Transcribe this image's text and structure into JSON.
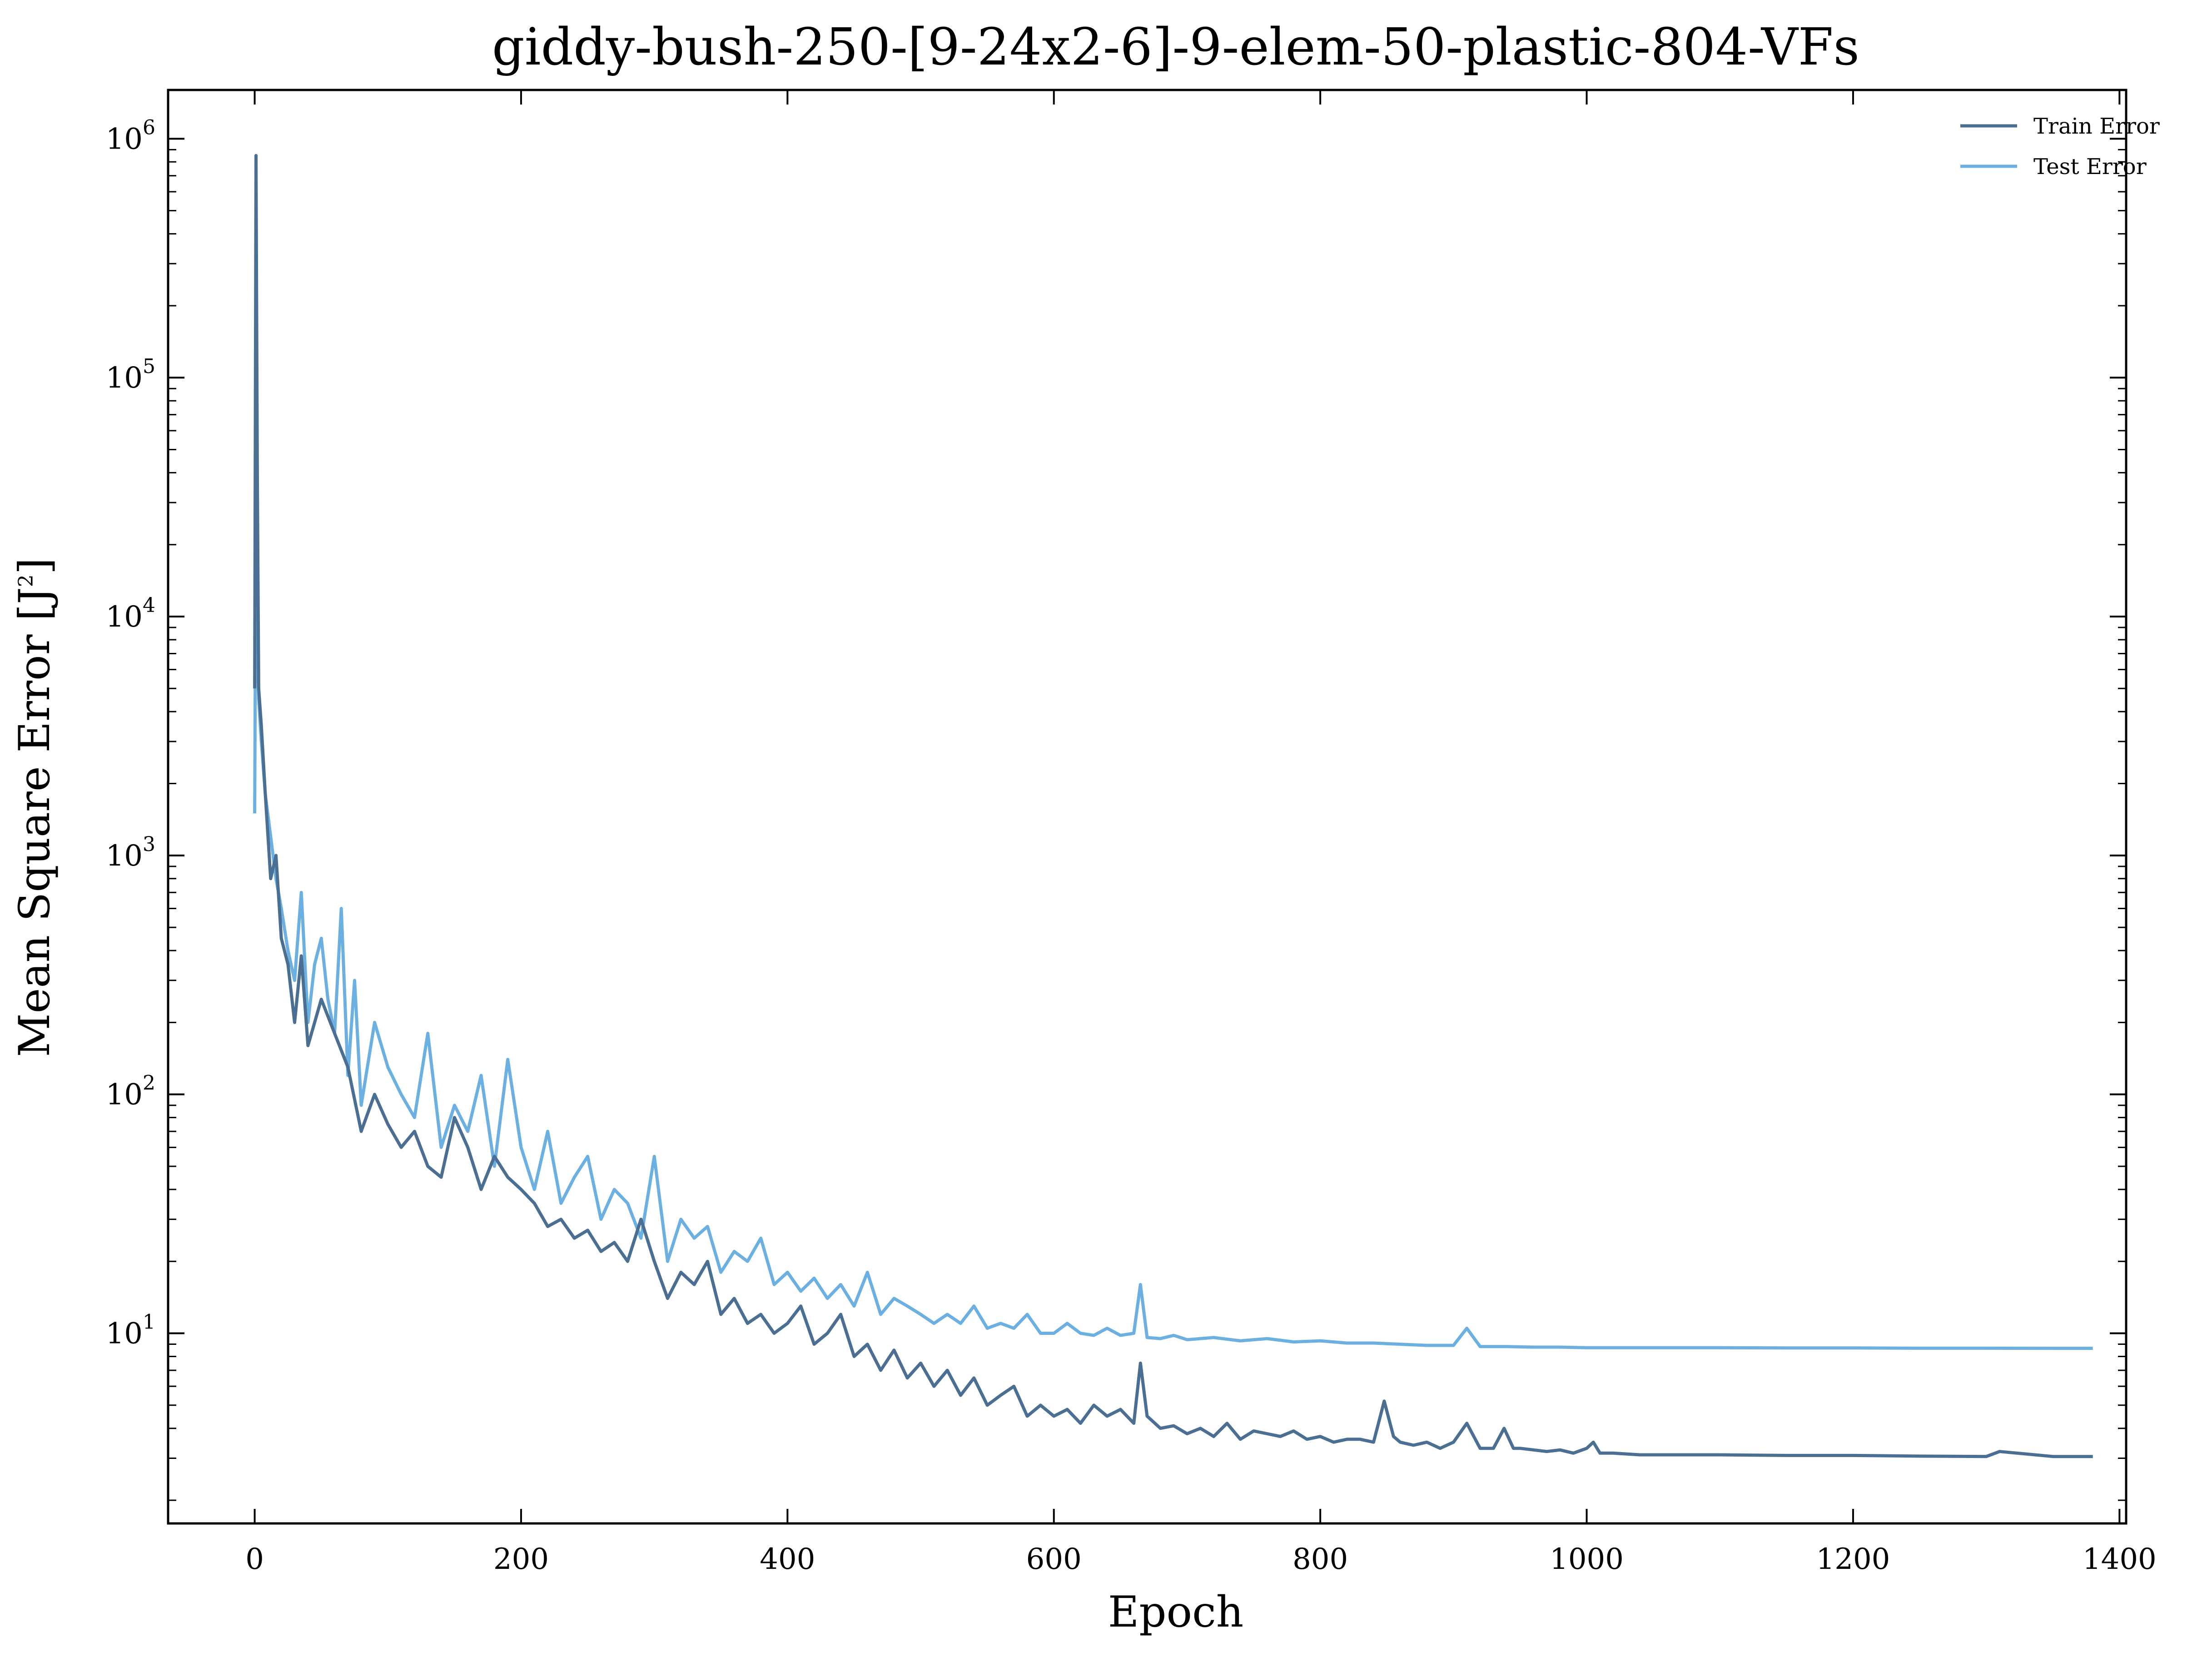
{
  "chart_data": {
    "type": "line",
    "title": "giddy-bush-250-[9-24x2-6]-9-elem-50-plastic-804-VFs",
    "xlabel": "Epoch",
    "ylabel": "Mean Square Error [J",
    "ylabel_exp": "2",
    "ylabel_tail": "]",
    "xlim": [
      -65,
      1405
    ],
    "ylim": [
      1.6,
      1600000
    ],
    "yscale": "log",
    "grid": false,
    "legend_position": "top-right",
    "x_ticks": [
      0,
      200,
      400,
      600,
      800,
      1000,
      1200,
      1400
    ],
    "x_tick_labels": [
      "0",
      "200",
      "400",
      "600",
      "800",
      "1000",
      "1200",
      "1400"
    ],
    "y_ticks": [
      10,
      100,
      1000,
      10000,
      100000,
      1000000
    ],
    "y_tick_labels": [
      {
        "base": "10",
        "exp": "1"
      },
      {
        "base": "10",
        "exp": "2"
      },
      {
        "base": "10",
        "exp": "3"
      },
      {
        "base": "10",
        "exp": "4"
      },
      {
        "base": "10",
        "exp": "5"
      },
      {
        "base": "10",
        "exp": "6"
      }
    ],
    "series": [
      {
        "name": "Train Error",
        "color": "#4a6f92",
        "x": [
          0,
          1,
          2,
          3,
          5,
          8,
          12,
          16,
          20,
          25,
          30,
          35,
          40,
          50,
          60,
          70,
          80,
          90,
          100,
          110,
          120,
          130,
          140,
          150,
          160,
          170,
          180,
          190,
          200,
          210,
          220,
          230,
          240,
          250,
          260,
          270,
          280,
          290,
          300,
          310,
          320,
          330,
          340,
          350,
          360,
          370,
          380,
          390,
          400,
          410,
          420,
          430,
          440,
          450,
          460,
          470,
          480,
          490,
          500,
          510,
          520,
          530,
          540,
          550,
          560,
          570,
          580,
          590,
          600,
          610,
          620,
          630,
          640,
          650,
          660,
          665,
          670,
          680,
          690,
          700,
          710,
          720,
          730,
          740,
          750,
          760,
          770,
          780,
          790,
          800,
          810,
          820,
          830,
          840,
          848,
          855,
          860,
          870,
          880,
          890,
          900,
          910,
          920,
          930,
          938,
          945,
          950,
          960,
          970,
          980,
          990,
          1000,
          1005,
          1010,
          1020,
          1040,
          1060,
          1080,
          1100,
          1150,
          1200,
          1250,
          1300,
          1310,
          1350,
          1380
        ],
        "y": [
          5000,
          850000,
          40000,
          5000,
          3500,
          1800,
          800,
          1000,
          450,
          350,
          200,
          380,
          160,
          250,
          180,
          130,
          70,
          100,
          75,
          60,
          70,
          50,
          45,
          80,
          60,
          40,
          55,
          45,
          40,
          35,
          28,
          30,
          25,
          27,
          22,
          24,
          20,
          30,
          20,
          14,
          18,
          16,
          20,
          12,
          14,
          11,
          12,
          10,
          11,
          13,
          9,
          10,
          12,
          8,
          9,
          7,
          8.5,
          6.5,
          7.5,
          6,
          7,
          5.5,
          6.5,
          5,
          5.5,
          6,
          4.5,
          5,
          4.5,
          4.8,
          4.2,
          5,
          4.5,
          4.8,
          4.2,
          7.5,
          4.5,
          4.0,
          4.1,
          3.8,
          4.0,
          3.7,
          4.2,
          3.6,
          3.9,
          3.8,
          3.7,
          3.9,
          3.6,
          3.7,
          3.5,
          3.6,
          3.6,
          3.5,
          5.2,
          3.7,
          3.5,
          3.4,
          3.5,
          3.3,
          3.5,
          4.2,
          3.3,
          3.3,
          4.0,
          3.3,
          3.3,
          3.25,
          3.2,
          3.25,
          3.15,
          3.3,
          3.5,
          3.15,
          3.15,
          3.1,
          3.1,
          3.1,
          3.1,
          3.08,
          3.08,
          3.06,
          3.05,
          3.2,
          3.05,
          3.05
        ]
      },
      {
        "name": "Test Error",
        "color": "#6cb0e2",
        "x": [
          0,
          1,
          2,
          3,
          5,
          8,
          12,
          16,
          20,
          25,
          30,
          35,
          40,
          45,
          50,
          55,
          60,
          65,
          70,
          75,
          80,
          90,
          100,
          110,
          120,
          130,
          140,
          150,
          160,
          170,
          180,
          190,
          200,
          210,
          220,
          230,
          240,
          250,
          260,
          270,
          280,
          290,
          300,
          310,
          320,
          330,
          340,
          350,
          360,
          370,
          380,
          390,
          400,
          410,
          420,
          430,
          440,
          450,
          460,
          470,
          480,
          490,
          500,
          510,
          520,
          530,
          540,
          550,
          560,
          570,
          580,
          590,
          600,
          610,
          620,
          630,
          640,
          650,
          660,
          665,
          670,
          680,
          690,
          700,
          720,
          740,
          760,
          780,
          800,
          820,
          840,
          860,
          880,
          900,
          910,
          920,
          940,
          960,
          980,
          1000,
          1050,
          1100,
          1150,
          1200,
          1250,
          1300,
          1350,
          1380
        ],
        "y": [
          1500,
          30000,
          10000,
          4500,
          3000,
          1800,
          1200,
          800,
          600,
          400,
          300,
          700,
          200,
          350,
          450,
          250,
          180,
          600,
          120,
          300,
          90,
          200,
          130,
          100,
          80,
          180,
          60,
          90,
          70,
          120,
          50,
          140,
          60,
          40,
          70,
          35,
          45,
          55,
          30,
          40,
          35,
          25,
          55,
          20,
          30,
          25,
          28,
          18,
          22,
          20,
          25,
          16,
          18,
          15,
          17,
          14,
          16,
          13,
          18,
          12,
          14,
          13,
          12,
          11,
          12,
          11,
          13,
          10.5,
          11,
          10.5,
          12,
          10,
          10,
          11,
          10,
          9.8,
          10.5,
          9.8,
          10,
          16,
          9.6,
          9.5,
          9.8,
          9.4,
          9.6,
          9.3,
          9.5,
          9.2,
          9.3,
          9.1,
          9.1,
          9.0,
          8.9,
          8.9,
          10.5,
          8.8,
          8.8,
          8.75,
          8.75,
          8.7,
          8.7,
          8.7,
          8.68,
          8.68,
          8.66,
          8.66,
          8.65,
          8.65
        ]
      }
    ]
  }
}
